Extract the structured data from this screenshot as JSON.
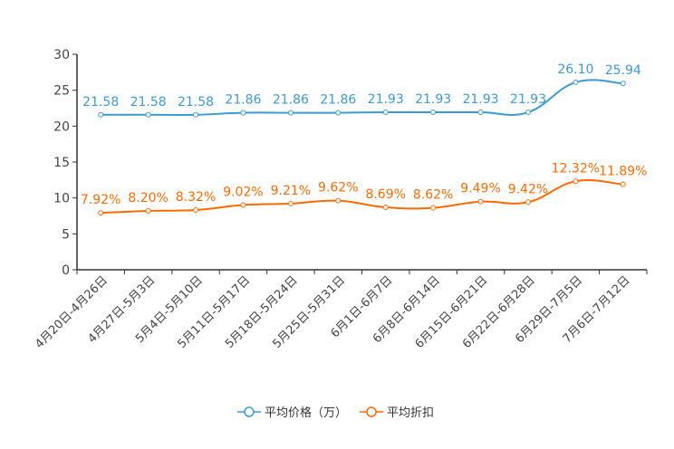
{
  "chart_data": {
    "type": "line",
    "categories": [
      "4月20日-4月26日",
      "4月27日-5月3日",
      "5月4日-5月10日",
      "5月11日-5月17日",
      "5月18日-5月24日",
      "5月25日-5月31日",
      "6月1日-6月7日",
      "6月8日-6月14日",
      "6月15日-6月21日",
      "6月22日-6月28日",
      "6月29日-7月5日",
      "7月6日-7月12日"
    ],
    "series": [
      {
        "name": "平均价格（万）",
        "color": "#3a9bd5",
        "values": [
          21.58,
          21.58,
          21.58,
          21.86,
          21.86,
          21.86,
          21.93,
          21.93,
          21.93,
          21.93,
          26.1,
          25.94
        ],
        "labels": [
          "21.58",
          "21.58",
          "21.58",
          "21.86",
          "21.86",
          "21.86",
          "21.93",
          "21.93",
          "21.93",
          "21.93",
          "26.10",
          "25.94"
        ]
      },
      {
        "name": "平均折扣",
        "color": "#ff6a00",
        "values": [
          7.92,
          8.2,
          8.32,
          9.02,
          9.21,
          9.62,
          8.69,
          8.62,
          9.49,
          9.42,
          12.32,
          11.89
        ],
        "labels": [
          "7.92%",
          "8.20%",
          "8.32%",
          "9.02%",
          "9.21%",
          "9.62%",
          "8.69%",
          "8.62%",
          "9.49%",
          "9.42%",
          "12.32%",
          "11.89%"
        ]
      }
    ],
    "yticks": [
      0,
      5,
      10,
      15,
      20,
      25,
      30
    ],
    "ylim": [
      0,
      30
    ],
    "legend_position": "bottom-center"
  }
}
